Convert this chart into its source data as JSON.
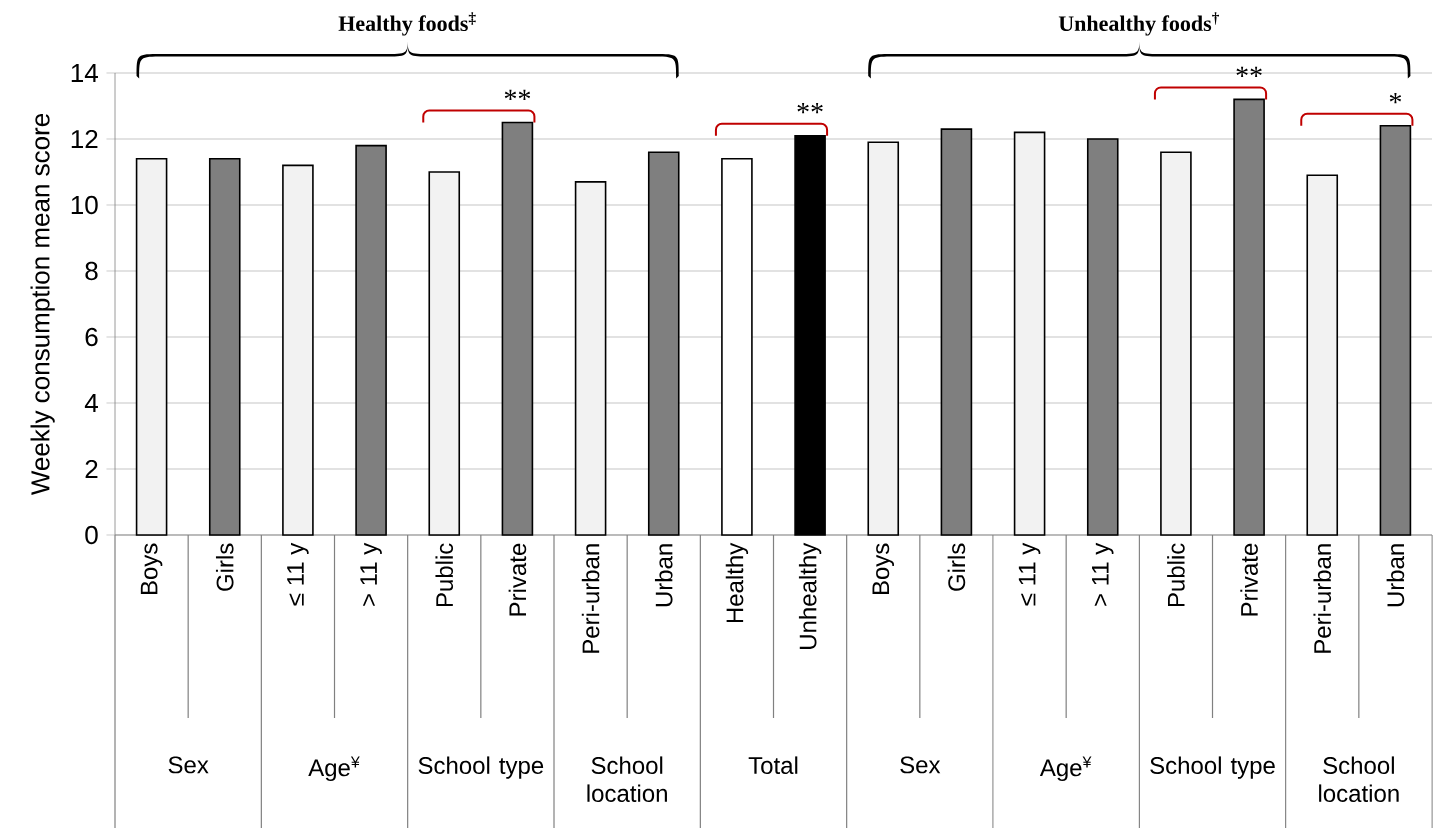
{
  "chart_data": {
    "type": "bar",
    "ylabel": "Weekly consumption mean score",
    "categories": [
      "Boys",
      "Girls",
      "≤ 11 y",
      "> 11 y",
      "Public",
      "Private",
      "Peri-urban",
      "Urban",
      "Healthy",
      "Unhealthy",
      "Boys",
      "Girls",
      "≤ 11 y",
      "> 11 y",
      "Public",
      "Private",
      "Peri-urban",
      "Urban"
    ],
    "values": [
      11.4,
      11.4,
      11.2,
      11.8,
      11.0,
      12.5,
      10.7,
      11.6,
      11.4,
      12.1,
      11.9,
      12.3,
      12.2,
      12.0,
      11.6,
      13.2,
      10.9,
      12.4
    ],
    "colors": [
      "#f2f2f2",
      "#7f7f7f",
      "#f2f2f2",
      "#7f7f7f",
      "#f2f2f2",
      "#7f7f7f",
      "#f2f2f2",
      "#7f7f7f",
      "#ffffff",
      "#000000",
      "#f2f2f2",
      "#7f7f7f",
      "#f2f2f2",
      "#7f7f7f",
      "#f2f2f2",
      "#7f7f7f",
      "#f2f2f2",
      "#7f7f7f"
    ],
    "ylim": [
      0,
      14
    ],
    "yticks": [
      0,
      2,
      4,
      6,
      8,
      10,
      12,
      14
    ],
    "grid": "y",
    "annotations": [
      "Healthy foods$^{‡}$",
      "Unhealthy foods$^{†}$",
      "Sex",
      "Age$^{¥}$",
      "School type",
      "School location",
      "Total",
      "Sex",
      "Age$^{¥}$",
      "School type",
      "School location",
      "**",
      "**",
      "**",
      "*"
    ]
  }
}
